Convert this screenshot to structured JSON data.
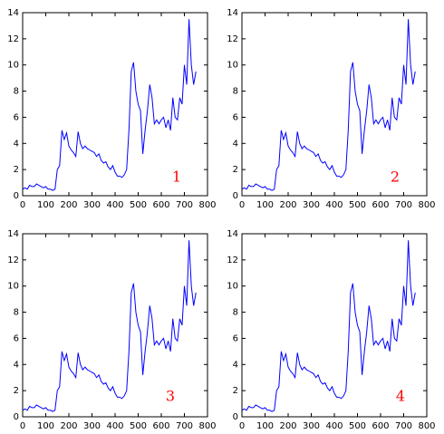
{
  "chart_data": [
    {
      "type": "line",
      "annotation": "1",
      "x": [
        0,
        10,
        20,
        30,
        40,
        50,
        60,
        70,
        80,
        90,
        100,
        110,
        120,
        130,
        140,
        150,
        160,
        170,
        180,
        190,
        200,
        210,
        220,
        230,
        240,
        250,
        260,
        270,
        280,
        290,
        300,
        310,
        320,
        330,
        340,
        350,
        360,
        370,
        380,
        390,
        400,
        410,
        420,
        430,
        440,
        450,
        460,
        470,
        480,
        490,
        500,
        510,
        520,
        530,
        540,
        550,
        560,
        570,
        580,
        590,
        600,
        610,
        620,
        630,
        640,
        650,
        660,
        670,
        680,
        690,
        700,
        710,
        720,
        730,
        740,
        750
      ],
      "series": [
        {
          "color": "#0000ff",
          "values": [
            0.5,
            0.6,
            0.5,
            0.8,
            0.7,
            0.7,
            0.9,
            0.8,
            0.7,
            0.6,
            0.7,
            0.5,
            0.5,
            0.4,
            0.5,
            2.0,
            2.3,
            5.0,
            4.3,
            4.8,
            3.8,
            3.5,
            3.3,
            3.0,
            4.9,
            4.0,
            3.6,
            3.8,
            3.6,
            3.5,
            3.4,
            3.3,
            3.0,
            3.2,
            2.7,
            2.5,
            2.6,
            2.2,
            2.0,
            2.3,
            1.8,
            1.5,
            1.5,
            1.4,
            1.6,
            2.0,
            5.0,
            9.5,
            10.2,
            8.0,
            7.0,
            6.5,
            3.2,
            5.0,
            6.5,
            8.5,
            7.5,
            5.5,
            5.8,
            5.5,
            5.8,
            6.0,
            5.2,
            5.8,
            5.0,
            7.5,
            6.0,
            5.8,
            7.5,
            7.0,
            10.0,
            8.5,
            13.5,
            10.0,
            8.5,
            9.5
          ]
        }
      ],
      "xlim": [
        0,
        800
      ],
      "ylim": [
        0,
        14
      ],
      "xticks": [
        0,
        100,
        200,
        300,
        400,
        500,
        600,
        700,
        800
      ],
      "yticks": [
        0,
        2,
        4,
        6,
        8,
        10,
        12,
        14
      ]
    },
    {
      "type": "line",
      "annotation": "2",
      "x": [
        0,
        10,
        20,
        30,
        40,
        50,
        60,
        70,
        80,
        90,
        100,
        110,
        120,
        130,
        140,
        150,
        160,
        170,
        180,
        190,
        200,
        210,
        220,
        230,
        240,
        250,
        260,
        270,
        280,
        290,
        300,
        310,
        320,
        330,
        340,
        350,
        360,
        370,
        380,
        390,
        400,
        410,
        420,
        430,
        440,
        450,
        460,
        470,
        480,
        490,
        500,
        510,
        520,
        530,
        540,
        550,
        560,
        570,
        580,
        590,
        600,
        610,
        620,
        630,
        640,
        650,
        660,
        670,
        680,
        690,
        700,
        710,
        720,
        730,
        740,
        750
      ],
      "series": [
        {
          "color": "#0000ff",
          "values": [
            0.5,
            0.6,
            0.5,
            0.8,
            0.7,
            0.7,
            0.9,
            0.8,
            0.7,
            0.6,
            0.7,
            0.5,
            0.5,
            0.4,
            0.5,
            2.0,
            2.3,
            5.0,
            4.3,
            4.8,
            3.8,
            3.5,
            3.3,
            3.0,
            4.9,
            4.0,
            3.6,
            3.8,
            3.6,
            3.5,
            3.4,
            3.3,
            3.0,
            3.2,
            2.7,
            2.5,
            2.6,
            2.2,
            2.0,
            2.3,
            1.8,
            1.5,
            1.5,
            1.4,
            1.6,
            2.0,
            5.0,
            9.5,
            10.2,
            8.0,
            7.0,
            6.5,
            3.2,
            5.0,
            6.5,
            8.5,
            7.5,
            5.5,
            5.8,
            5.5,
            5.8,
            6.0,
            5.2,
            5.8,
            5.0,
            7.5,
            6.0,
            5.8,
            7.5,
            7.0,
            10.0,
            8.5,
            13.5,
            10.0,
            8.5,
            9.5
          ]
        }
      ],
      "xlim": [
        0,
        800
      ],
      "ylim": [
        0,
        14
      ],
      "xticks": [
        0,
        100,
        200,
        300,
        400,
        500,
        600,
        700,
        800
      ],
      "yticks": [
        0,
        2,
        4,
        6,
        8,
        10,
        12,
        14
      ]
    },
    {
      "type": "line",
      "annotation": "3",
      "x": [
        0,
        10,
        20,
        30,
        40,
        50,
        60,
        70,
        80,
        90,
        100,
        110,
        120,
        130,
        140,
        150,
        160,
        170,
        180,
        190,
        200,
        210,
        220,
        230,
        240,
        250,
        260,
        270,
        280,
        290,
        300,
        310,
        320,
        330,
        340,
        350,
        360,
        370,
        380,
        390,
        400,
        410,
        420,
        430,
        440,
        450,
        460,
        470,
        480,
        490,
        500,
        510,
        520,
        530,
        540,
        550,
        560,
        570,
        580,
        590,
        600,
        610,
        620,
        630,
        640,
        650,
        660,
        670,
        680,
        690,
        700,
        710,
        720,
        730,
        740,
        750
      ],
      "series": [
        {
          "color": "#0000ff",
          "values": [
            0.5,
            0.6,
            0.5,
            0.8,
            0.7,
            0.7,
            0.9,
            0.8,
            0.7,
            0.6,
            0.7,
            0.5,
            0.5,
            0.4,
            0.5,
            2.0,
            2.3,
            5.0,
            4.3,
            4.8,
            3.8,
            3.5,
            3.3,
            3.0,
            4.9,
            4.0,
            3.6,
            3.8,
            3.6,
            3.5,
            3.4,
            3.3,
            3.0,
            3.2,
            2.7,
            2.5,
            2.6,
            2.2,
            2.0,
            2.3,
            1.8,
            1.5,
            1.5,
            1.4,
            1.6,
            2.0,
            5.0,
            9.5,
            10.2,
            8.0,
            7.0,
            6.5,
            3.2,
            5.0,
            6.5,
            8.5,
            7.5,
            5.5,
            5.8,
            5.5,
            5.8,
            6.0,
            5.2,
            5.8,
            5.0,
            7.5,
            6.0,
            5.8,
            7.5,
            7.0,
            10.0,
            8.5,
            13.5,
            10.0,
            8.5,
            9.5
          ]
        }
      ],
      "xlim": [
        0,
        800
      ],
      "ylim": [
        0,
        14
      ],
      "xticks": [
        0,
        100,
        200,
        300,
        400,
        500,
        600,
        700,
        800
      ],
      "yticks": [
        0,
        2,
        4,
        6,
        8,
        10,
        12,
        14
      ]
    },
    {
      "type": "line",
      "annotation": "4",
      "x": [
        0,
        10,
        20,
        30,
        40,
        50,
        60,
        70,
        80,
        90,
        100,
        110,
        120,
        130,
        140,
        150,
        160,
        170,
        180,
        190,
        200,
        210,
        220,
        230,
        240,
        250,
        260,
        270,
        280,
        290,
        300,
        310,
        320,
        330,
        340,
        350,
        360,
        370,
        380,
        390,
        400,
        410,
        420,
        430,
        440,
        450,
        460,
        470,
        480,
        490,
        500,
        510,
        520,
        530,
        540,
        550,
        560,
        570,
        580,
        590,
        600,
        610,
        620,
        630,
        640,
        650,
        660,
        670,
        680,
        690,
        700,
        710,
        720,
        730,
        740,
        750
      ],
      "series": [
        {
          "color": "#0000ff",
          "values": [
            0.5,
            0.6,
            0.5,
            0.8,
            0.7,
            0.7,
            0.9,
            0.8,
            0.7,
            0.6,
            0.7,
            0.5,
            0.5,
            0.4,
            0.5,
            2.0,
            2.3,
            5.0,
            4.3,
            4.8,
            3.8,
            3.5,
            3.3,
            3.0,
            4.9,
            4.0,
            3.6,
            3.8,
            3.6,
            3.5,
            3.4,
            3.3,
            3.0,
            3.2,
            2.7,
            2.5,
            2.6,
            2.2,
            2.0,
            2.3,
            1.8,
            1.5,
            1.5,
            1.4,
            1.6,
            2.0,
            5.0,
            9.5,
            10.2,
            8.0,
            7.0,
            6.5,
            3.2,
            5.0,
            6.5,
            8.5,
            7.5,
            5.5,
            5.8,
            5.5,
            5.8,
            6.0,
            5.2,
            5.8,
            5.0,
            7.5,
            6.0,
            5.8,
            7.5,
            7.0,
            10.0,
            8.5,
            13.5,
            10.0,
            8.5,
            9.5
          ]
        }
      ],
      "xlim": [
        0,
        800
      ],
      "ylim": [
        0,
        14
      ],
      "xticks": [
        0,
        100,
        200,
        300,
        400,
        500,
        600,
        700,
        800
      ],
      "yticks": [
        0,
        2,
        4,
        6,
        8,
        10,
        12,
        14
      ]
    }
  ]
}
